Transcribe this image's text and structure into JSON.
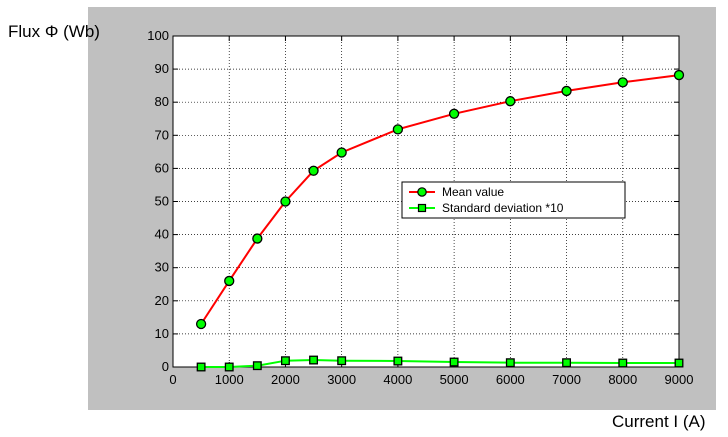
{
  "chart_data": {
    "type": "line",
    "xlabel": "Current I (A)",
    "ylabel": "Flux Φ (Wb)",
    "xlim": [
      0,
      9000
    ],
    "ylim": [
      0,
      100
    ],
    "xticks": [
      0,
      1000,
      2000,
      3000,
      4000,
      5000,
      6000,
      7000,
      8000,
      9000
    ],
    "yticks": [
      0,
      10,
      20,
      30,
      40,
      50,
      60,
      70,
      80,
      90,
      100
    ],
    "grid": true,
    "legend_position": "center-right",
    "series": [
      {
        "name": "Mean value",
        "color": "#ff0000",
        "marker": "circle",
        "marker_color": "#00ff00",
        "x": [
          500,
          1000,
          1500,
          2000,
          2500,
          3000,
          4000,
          5000,
          6000,
          7000,
          8000,
          9000
        ],
        "y": [
          13,
          26,
          38.8,
          50,
          59.3,
          64.8,
          71.8,
          76.5,
          80.3,
          83.4,
          86,
          88.2
        ]
      },
      {
        "name": "Standard deviation *10",
        "color": "#00ff00",
        "marker": "square",
        "marker_color": "#00ff00",
        "x": [
          500,
          1000,
          1500,
          2000,
          2500,
          3000,
          4000,
          5000,
          6000,
          7000,
          8000,
          9000
        ],
        "y": [
          0,
          0,
          0.4,
          1.9,
          2.1,
          1.9,
          1.8,
          1.5,
          1.3,
          1.3,
          1.2,
          1.2
        ]
      }
    ]
  }
}
